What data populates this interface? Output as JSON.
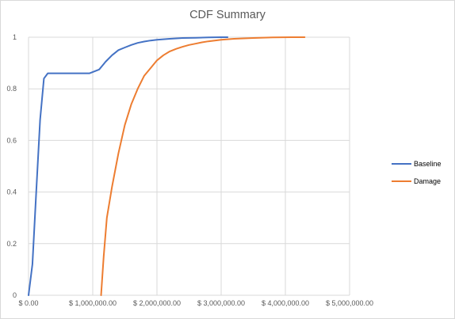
{
  "chart_data": {
    "type": "line",
    "title": "CDF Summary",
    "xlabel": "",
    "ylabel": "",
    "xlim": [
      0,
      5000000
    ],
    "ylim": [
      0,
      1
    ],
    "grid": true,
    "legend_position": "right",
    "x_ticks": [
      "$ 0.00",
      "$ 1,000,000.00",
      "$ 2,000,000.00",
      "$ 3,000,000.00",
      "$ 4,000,000.00",
      "$ 5,000,000.00"
    ],
    "y_ticks": [
      "0",
      "0.2",
      "0.4",
      "0.6",
      "0.8",
      "1"
    ],
    "series": [
      {
        "name": "Baseline",
        "color": "#4472c4",
        "x": [
          0,
          60000,
          120000,
          180000,
          240000,
          300000,
          400000,
          600000,
          800000,
          950000,
          1050000,
          1100000,
          1150000,
          1200000,
          1300000,
          1400000,
          1500000,
          1600000,
          1700000,
          1800000,
          1900000,
          2000000,
          2200000,
          2400000,
          2600000,
          2800000,
          3000000,
          3100000
        ],
        "y": [
          0.0,
          0.12,
          0.4,
          0.68,
          0.84,
          0.86,
          0.86,
          0.86,
          0.86,
          0.86,
          0.87,
          0.875,
          0.89,
          0.905,
          0.93,
          0.95,
          0.96,
          0.97,
          0.978,
          0.983,
          0.987,
          0.99,
          0.994,
          0.997,
          0.998,
          0.999,
          1.0,
          1.0
        ]
      },
      {
        "name": "Damage",
        "color": "#ed7d31",
        "x": [
          1130000,
          1170000,
          1220000,
          1300000,
          1400000,
          1500000,
          1600000,
          1700000,
          1800000,
          1900000,
          2000000,
          2100000,
          2200000,
          2300000,
          2400000,
          2500000,
          2600000,
          2700000,
          2800000,
          2900000,
          3000000,
          3200000,
          3500000,
          3800000,
          4100000,
          4300000
        ],
        "y": [
          0.0,
          0.15,
          0.3,
          0.42,
          0.55,
          0.66,
          0.74,
          0.8,
          0.85,
          0.88,
          0.91,
          0.93,
          0.945,
          0.955,
          0.963,
          0.97,
          0.975,
          0.98,
          0.984,
          0.987,
          0.99,
          0.994,
          0.997,
          0.999,
          1.0,
          1.0
        ]
      }
    ]
  }
}
